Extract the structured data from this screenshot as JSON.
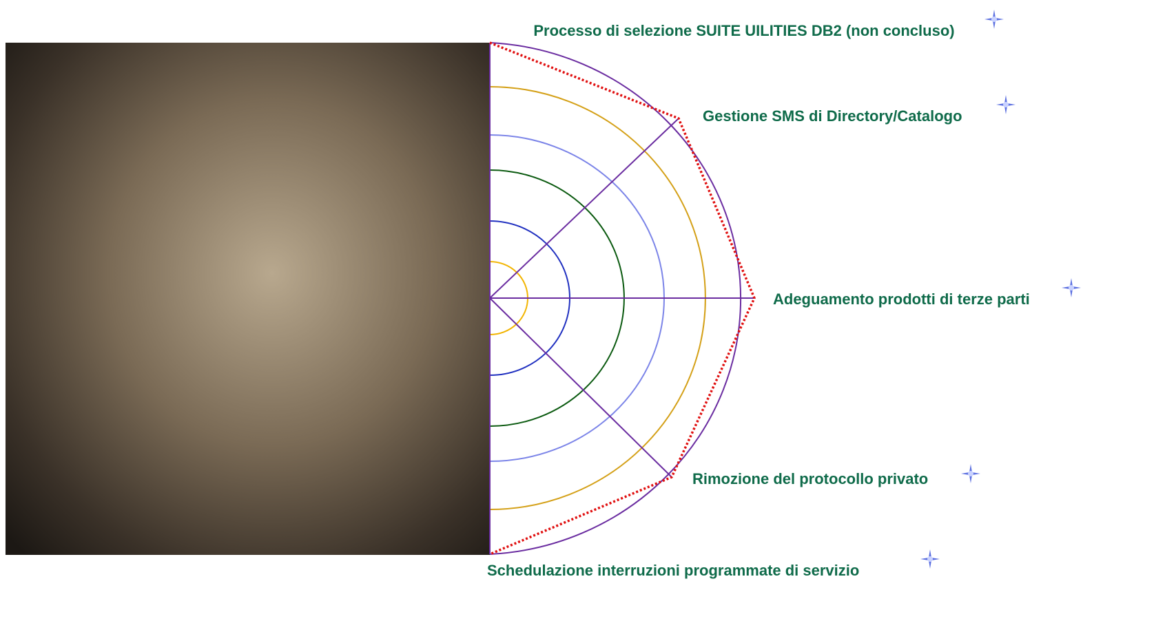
{
  "labels": [
    "Processo di selezione SUITE UILITIES DB2 (non concluso)",
    "Gestione SMS di Directory/Catalogo",
    "Adeguamento prodotti di terze parti",
    "Rimozione del protocollo privato",
    "Schedulazione interruzioni programmate di servizio"
  ]
}
